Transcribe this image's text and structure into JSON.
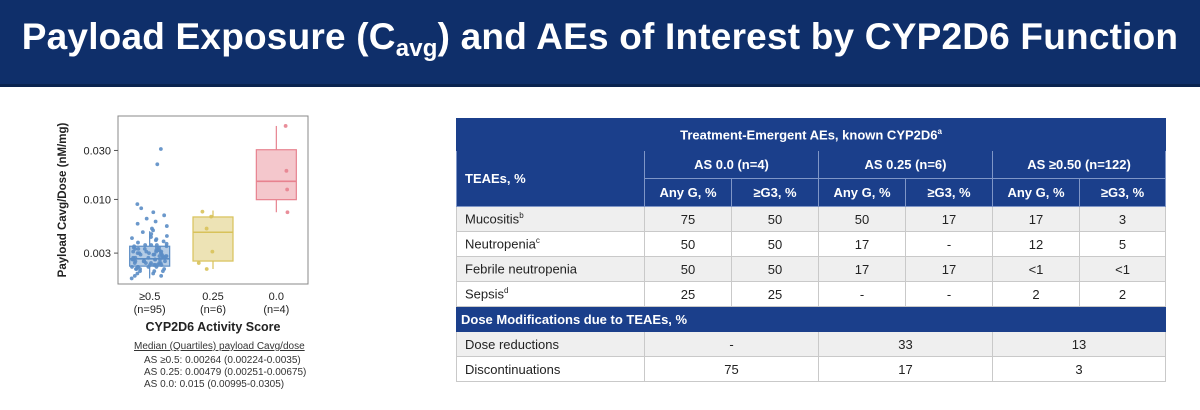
{
  "header": {
    "title_pre": "Payload Exposure (C",
    "title_sub": "avg",
    "title_post": ") and AEs of Interest by CYP2D6 Function"
  },
  "colors": {
    "title_bg": "#0f2f6a",
    "table_header_bg": "#1b3f8b",
    "box_ge05": "#5b8dc5",
    "box_025": "#d8c25a",
    "box_00": "#e7828f"
  },
  "chart_data": {
    "type": "boxplot",
    "ylabel": "Payload Cavg/Dose (nM/mg)",
    "xlabel": "CYP2D6 Activity Score",
    "yscale": "log",
    "ylim": [
      0.0015,
      0.065
    ],
    "yticks": [
      0.003,
      0.01,
      0.03
    ],
    "ytick_labels": [
      "0.003",
      "0.010",
      "0.030"
    ],
    "categories": [
      {
        "label": "≥0.5",
        "n": "(n=95)",
        "color": "#5b8dc5",
        "q1": 0.00224,
        "median": 0.00264,
        "q3": 0.0035,
        "whisker_low": 0.0017,
        "whisker_high": 0.0049,
        "points": [
          0.0017,
          0.0018,
          0.0018,
          0.0019,
          0.0019,
          0.002,
          0.002,
          0.002,
          0.0021,
          0.0021,
          0.0021,
          0.0022,
          0.0022,
          0.0022,
          0.0022,
          0.0023,
          0.0023,
          0.0023,
          0.0023,
          0.0024,
          0.0024,
          0.0024,
          0.0024,
          0.0025,
          0.0025,
          0.0025,
          0.0025,
          0.0026,
          0.0026,
          0.0026,
          0.0026,
          0.0026,
          0.0027,
          0.0027,
          0.0027,
          0.0027,
          0.0028,
          0.0028,
          0.0028,
          0.0029,
          0.0029,
          0.0029,
          0.003,
          0.003,
          0.003,
          0.0031,
          0.0031,
          0.0031,
          0.0032,
          0.0032,
          0.0033,
          0.0033,
          0.0034,
          0.0034,
          0.0035,
          0.0035,
          0.0036,
          0.0036,
          0.0037,
          0.0038,
          0.0039,
          0.004,
          0.0041,
          0.0042,
          0.0043,
          0.0044,
          0.0046,
          0.0048,
          0.005,
          0.0052,
          0.0055,
          0.0058,
          0.0061,
          0.0065,
          0.007,
          0.0075,
          0.0082,
          0.009,
          0.0032,
          0.0029,
          0.0027,
          0.0025,
          0.0023,
          0.0021,
          0.0028,
          0.003,
          0.0034,
          0.0026,
          0.0024,
          0.0022,
          0.0031,
          0.0033,
          0.0036,
          0.022,
          0.031
        ]
      },
      {
        "label": "0.25",
        "n": "(n=6)",
        "color": "#d8c25a",
        "q1": 0.00251,
        "median": 0.00479,
        "q3": 0.00675,
        "whisker_low": 0.0021,
        "whisker_high": 0.0078,
        "points": [
          0.0021,
          0.0024,
          0.0031,
          0.0052,
          0.0068,
          0.0076
        ]
      },
      {
        "label": "0.0",
        "n": "(n=4)",
        "color": "#e7828f",
        "q1": 0.00995,
        "median": 0.015,
        "q3": 0.0305,
        "whisker_low": 0.0075,
        "whisker_high": 0.052,
        "points": [
          0.0075,
          0.0125,
          0.019,
          0.052
        ]
      }
    ]
  },
  "median_note": {
    "title": "Median (Quartiles) payload Cavg/dose",
    "lines": [
      "AS ≥0.5: 0.00264 (0.00224-0.0035)",
      "AS 0.25: 0.00479 (0.00251-0.00675)",
      "AS 0.0: 0.015 (0.00995-0.0305)"
    ]
  },
  "table": {
    "title": "Treatment-Emergent AEs, known CYP2D6",
    "title_sup": "a",
    "row_header": "TEAEs, %",
    "groups": [
      "AS 0.0 (n=4)",
      "AS 0.25 (n=6)",
      "AS ≥0.50 (n=122)"
    ],
    "subheaders": [
      "Any G, %",
      "≥G3, %",
      "Any G, %",
      "≥G3, %",
      "Any G, %",
      "≥G3, %"
    ],
    "rows": [
      {
        "label": "Mucositis",
        "sup": "b",
        "values": [
          "75",
          "50",
          "50",
          "17",
          "17",
          "3"
        ]
      },
      {
        "label": "Neutropenia",
        "sup": "c",
        "values": [
          "50",
          "50",
          "17",
          "-",
          "12",
          "5"
        ]
      },
      {
        "label": "Febrile neutropenia",
        "sup": "",
        "values": [
          "50",
          "50",
          "17",
          "17",
          "<1",
          "<1"
        ]
      },
      {
        "label": "Sepsis",
        "sup": "d",
        "values": [
          "25",
          "25",
          "-",
          "-",
          "2",
          "2"
        ]
      }
    ],
    "section2_title": "Dose Modifications due to TEAEs, %",
    "rows2": [
      {
        "label": "Dose reductions",
        "values": [
          "-",
          "33",
          "13"
        ]
      },
      {
        "label": "Discontinuations",
        "values": [
          "75",
          "17",
          "3"
        ]
      }
    ]
  }
}
